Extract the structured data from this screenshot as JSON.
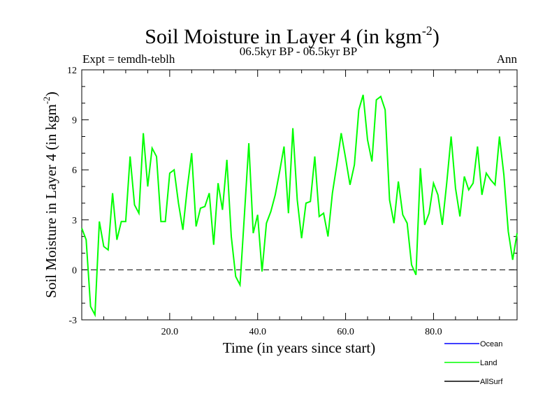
{
  "chart_data": {
    "type": "line",
    "title": "Soil Moisture in Layer 4 (in kgm",
    "title_sup": "-2",
    "title_close": ")",
    "subtitle": "06.5kyr BP - 06.5kyr BP",
    "expt_label": "Expt = temdh-teblh",
    "season_label": "Ann",
    "xlabel": "Time (in years since start)",
    "ylabel": "Soil Moisture in Layer 4 (in kgm",
    "ylabel_sup": "-2",
    "ylabel_close": ")",
    "xlim": [
      0,
      99
    ],
    "ylim": [
      -3,
      12
    ],
    "x_ticks": [
      20,
      40,
      60,
      80
    ],
    "x_tick_labels": [
      "20.0",
      "40.0",
      "60.0",
      "80.0"
    ],
    "y_ticks": [
      -3,
      0,
      3,
      6,
      9,
      12
    ],
    "y_tick_labels": [
      "-3",
      "0",
      "3",
      "6",
      "9",
      "12"
    ],
    "reference_line": 0,
    "legend": [
      {
        "name": "Ocean",
        "color": "#0000ff"
      },
      {
        "name": "Land",
        "color": "#00ff00"
      },
      {
        "name": "AllSurf",
        "color": "#000000"
      }
    ],
    "series": [
      {
        "name": "Land",
        "color": "#00ff00",
        "x": [
          0,
          1,
          2,
          3,
          4,
          5,
          6,
          7,
          8,
          9,
          10,
          11,
          12,
          13,
          14,
          15,
          16,
          17,
          18,
          19,
          20,
          21,
          22,
          23,
          24,
          25,
          26,
          27,
          28,
          29,
          30,
          31,
          32,
          33,
          34,
          35,
          36,
          37,
          38,
          39,
          40,
          41,
          42,
          43,
          44,
          45,
          46,
          47,
          48,
          49,
          50,
          51,
          52,
          53,
          54,
          55,
          56,
          57,
          58,
          59,
          60,
          61,
          62,
          63,
          64,
          65,
          66,
          67,
          68,
          69,
          70,
          71,
          72,
          73,
          74,
          75,
          76,
          77,
          78,
          79,
          80,
          81,
          82,
          83,
          84,
          85,
          86,
          87,
          88,
          89,
          90,
          91,
          92,
          93,
          94,
          95,
          96,
          97,
          98,
          99
        ],
        "values": [
          2.5,
          1.8,
          -2.2,
          -2.7,
          2.9,
          1.4,
          1.2,
          4.6,
          1.8,
          2.9,
          2.9,
          6.8,
          3.9,
          3.4,
          8.2,
          5.0,
          7.3,
          6.8,
          2.9,
          2.9,
          5.8,
          6.0,
          4.0,
          2.4,
          4.9,
          7.0,
          2.6,
          3.7,
          3.8,
          4.6,
          1.5,
          5.2,
          3.6,
          6.6,
          2.0,
          -0.4,
          -0.9,
          3.3,
          7.6,
          2.2,
          3.3,
          -0.1,
          2.8,
          3.5,
          4.5,
          5.9,
          7.4,
          3.4,
          8.5,
          4.2,
          1.9,
          4.0,
          4.1,
          6.8,
          3.2,
          3.4,
          2.0,
          4.6,
          6.3,
          8.2,
          6.7,
          5.1,
          6.3,
          9.6,
          10.5,
          7.8,
          6.5,
          10.2,
          10.4,
          9.6,
          4.2,
          2.8,
          5.3,
          3.3,
          2.8,
          0.3,
          -0.3,
          6.1,
          2.7,
          3.4,
          5.2,
          4.5,
          2.7,
          5.2,
          8.0,
          4.9,
          3.2,
          5.6,
          4.8,
          5.2,
          7.4,
          4.5,
          5.8,
          5.4,
          5.1,
          8.0,
          5.7,
          2.3,
          0.6,
          2.2
        ]
      }
    ]
  }
}
